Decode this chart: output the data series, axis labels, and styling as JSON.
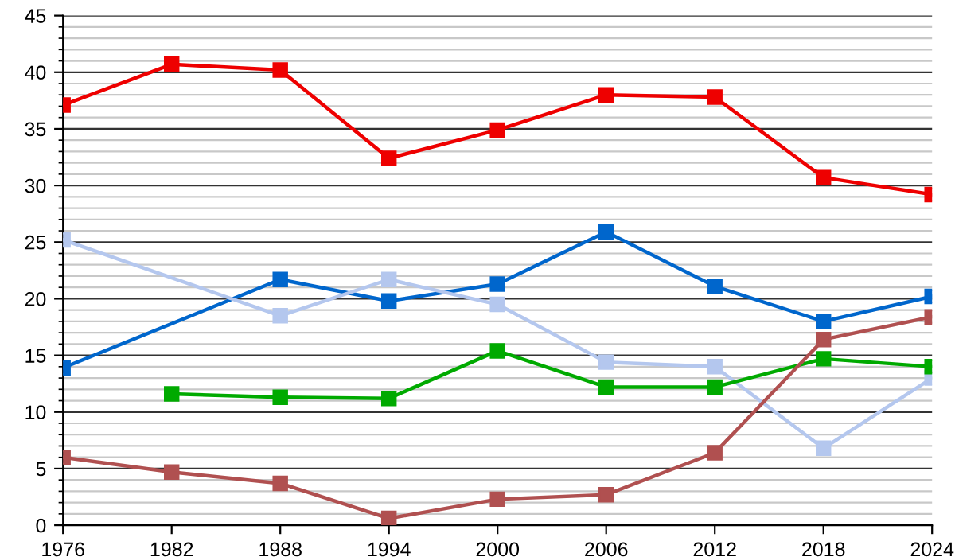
{
  "chart_data": {
    "type": "line",
    "x": [
      1976,
      1982,
      1988,
      1994,
      2000,
      2006,
      2012,
      2018,
      2024
    ],
    "series": [
      {
        "color": "#ee0000",
        "values": [
          37.1,
          40.7,
          40.2,
          32.4,
          34.9,
          38.0,
          37.8,
          30.7,
          29.2
        ]
      },
      {
        "color": "#0066cc",
        "values": [
          13.9,
          null,
          21.7,
          19.8,
          21.3,
          25.9,
          21.1,
          18.0,
          20.2
        ]
      },
      {
        "color": "#b4c7ee",
        "values": [
          25.2,
          null,
          18.5,
          21.7,
          19.5,
          14.4,
          14.0,
          6.8,
          13.0
        ]
      },
      {
        "color": "#00aa00",
        "values": [
          null,
          11.6,
          11.3,
          11.2,
          15.4,
          12.2,
          12.2,
          14.7,
          14.0
        ]
      },
      {
        "color": "#b05050",
        "values": [
          6.0,
          4.7,
          3.7,
          0.6,
          2.3,
          2.7,
          6.4,
          16.4,
          18.4
        ]
      }
    ],
    "xlim": [
      1976,
      2024
    ],
    "xticks": [
      1976,
      1982,
      1988,
      1994,
      2000,
      2006,
      2012,
      2018,
      2024
    ],
    "ylim": [
      0,
      45
    ],
    "yticks": [
      0,
      5,
      10,
      15,
      20,
      25,
      30,
      35,
      40,
      45
    ],
    "grid": "y",
    "marker": "square",
    "line_style": "solid",
    "legend": false
  }
}
